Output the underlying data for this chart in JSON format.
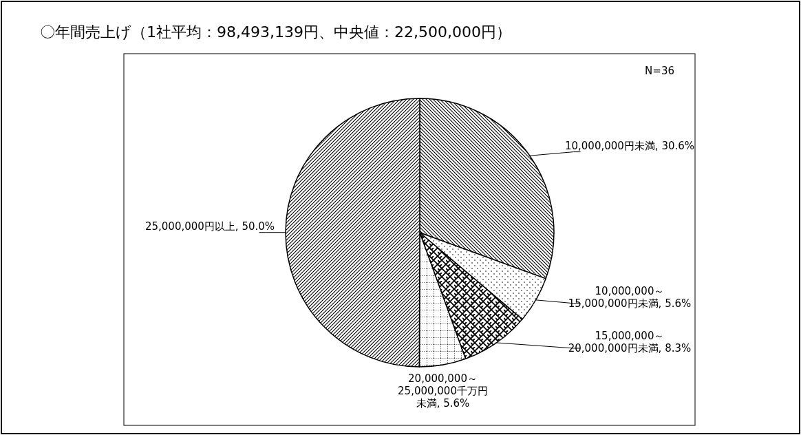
{
  "chart_data": {
    "type": "pie",
    "title": "〇年間売上げ（1社平均：98,493,139円、中央値：22,500,000円）",
    "categories": [
      "10,000,000円未満",
      "10,000,000～15,000,000円未満",
      "15,000,000～20,000,000円未満",
      "20,000,000～25,000,000千万円未満",
      "25,000,000円以上"
    ],
    "values": [
      30.6,
      5.6,
      8.3,
      5.6,
      50.0
    ],
    "value_labels": [
      ", 30.6%",
      ", 5.6%",
      ", 8.3%",
      ", 5.6%",
      ", 50.0%"
    ],
    "annotations": [
      "N=36"
    ]
  }
}
